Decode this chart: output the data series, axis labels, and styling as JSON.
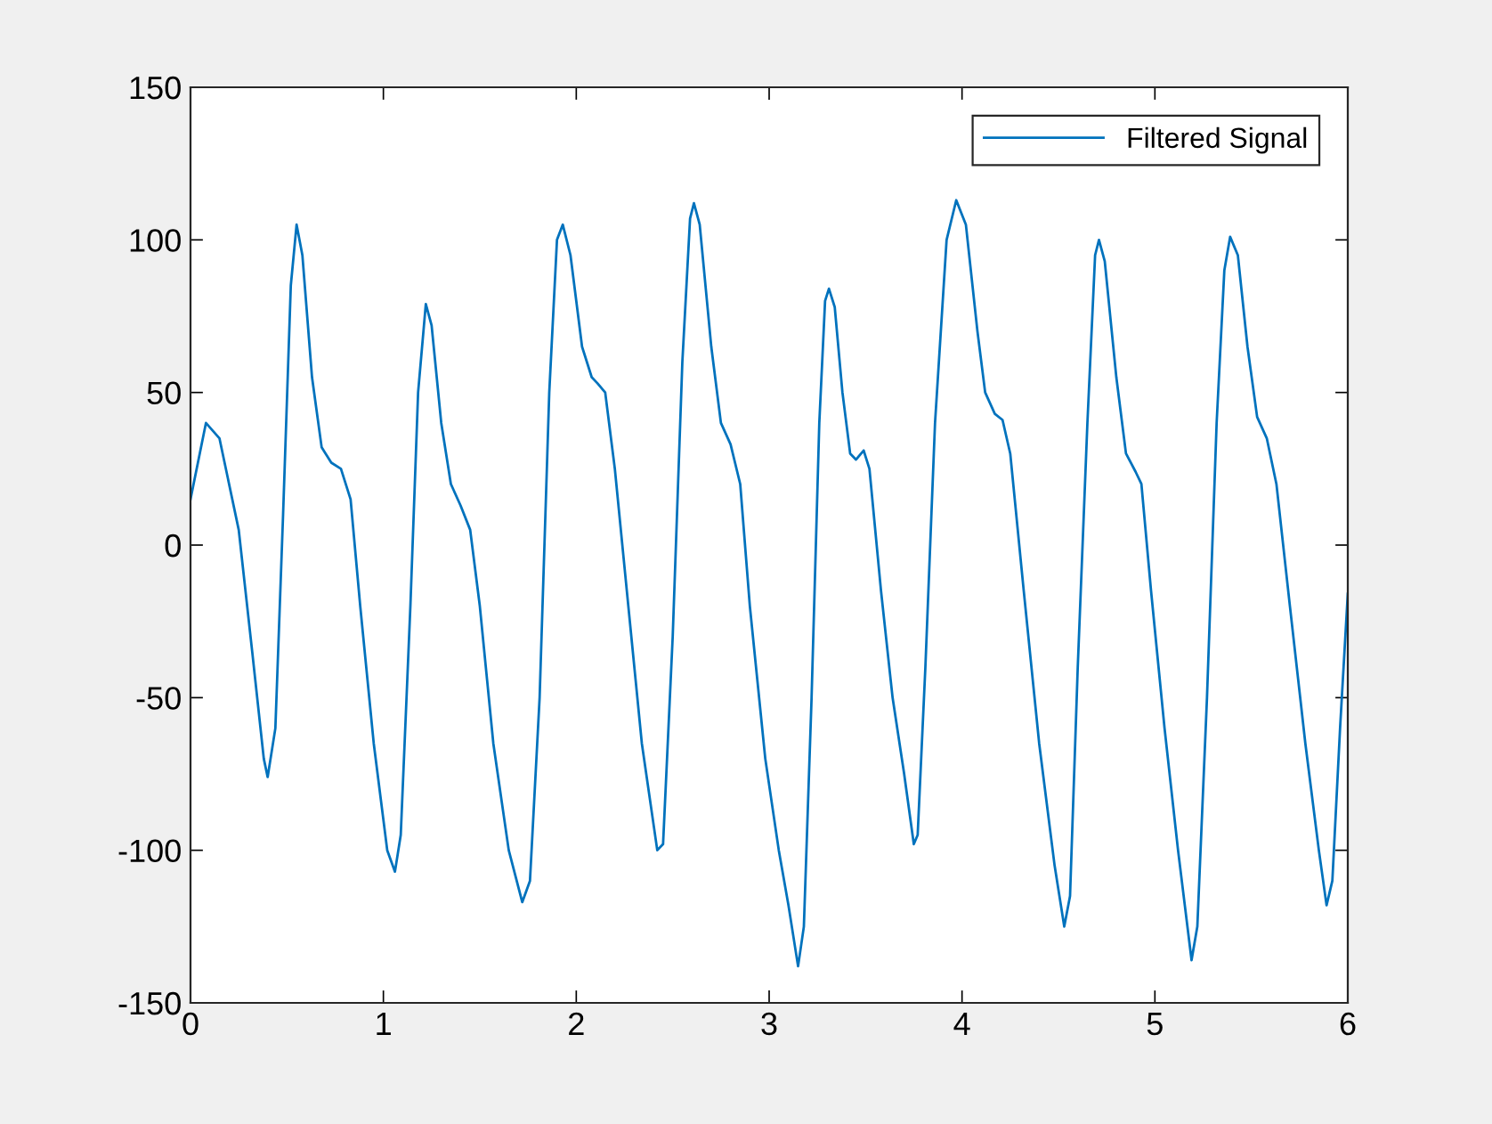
{
  "chart_data": {
    "type": "line",
    "xlim": [
      0,
      6
    ],
    "ylim": [
      -150,
      150
    ],
    "xticks": [
      0,
      1,
      2,
      3,
      4,
      5,
      6
    ],
    "yticks": [
      -150,
      -100,
      -50,
      0,
      50,
      100,
      150
    ],
    "grid": false,
    "legend": "top right",
    "line_style": "solid",
    "marker": "none",
    "series": [
      {
        "name": "Filtered Signal",
        "color": "#0072bd",
        "x": [
          0,
          0.08,
          0.15,
          0.25,
          0.32,
          0.38,
          0.4,
          0.44,
          0.48,
          0.52,
          0.55,
          0.58,
          0.63,
          0.68,
          0.73,
          0.78,
          0.83,
          0.88,
          0.95,
          1.02,
          1.06,
          1.09,
          1.14,
          1.18,
          1.22,
          1.25,
          1.3,
          1.35,
          1.4,
          1.45,
          1.5,
          1.57,
          1.65,
          1.72,
          1.76,
          1.81,
          1.86,
          1.9,
          1.93,
          1.97,
          2.03,
          2.08,
          2.11,
          2.15,
          2.2,
          2.27,
          2.34,
          2.42,
          2.45,
          2.5,
          2.55,
          2.59,
          2.61,
          2.64,
          2.7,
          2.75,
          2.8,
          2.85,
          2.9,
          2.98,
          3.05,
          3.1,
          3.15,
          3.18,
          3.22,
          3.26,
          3.29,
          3.31,
          3.34,
          3.38,
          3.42,
          3.45,
          3.49,
          3.52,
          3.58,
          3.64,
          3.7,
          3.75,
          3.77,
          3.81,
          3.86,
          3.92,
          3.97,
          4.02,
          4.08,
          4.12,
          4.17,
          4.21,
          4.25,
          4.32,
          4.4,
          4.48,
          4.53,
          4.56,
          4.6,
          4.65,
          4.69,
          4.71,
          4.74,
          4.8,
          4.85,
          4.9,
          4.93,
          4.98,
          5.05,
          5.12,
          5.19,
          5.22,
          5.27,
          5.32,
          5.36,
          5.39,
          5.43,
          5.48,
          5.53,
          5.58,
          5.63,
          5.7,
          5.78,
          5.85,
          5.89,
          5.92,
          5.96,
          6.0
        ],
        "values": [
          15,
          40,
          35,
          5,
          -35,
          -70,
          -76,
          -60,
          10,
          85,
          105,
          95,
          55,
          32,
          27,
          25,
          15,
          -20,
          -65,
          -100,
          -107,
          -95,
          -20,
          50,
          79,
          72,
          40,
          20,
          13,
          5,
          -20,
          -65,
          -100,
          -117,
          -110,
          -50,
          50,
          100,
          105,
          95,
          65,
          55,
          53,
          50,
          25,
          -20,
          -65,
          -100,
          -98,
          -30,
          60,
          107,
          112,
          105,
          65,
          40,
          33,
          20,
          -20,
          -70,
          -100,
          -118,
          -138,
          -125,
          -50,
          40,
          80,
          84,
          78,
          50,
          30,
          28,
          31,
          25,
          -15,
          -50,
          -75,
          -98,
          -95,
          -40,
          40,
          100,
          113,
          105,
          70,
          50,
          43,
          41,
          30,
          -15,
          -65,
          -105,
          -125,
          -115,
          -40,
          40,
          95,
          100,
          93,
          55,
          30,
          24,
          20,
          -15,
          -60,
          -100,
          -136,
          -125,
          -50,
          40,
          90,
          101,
          95,
          65,
          42,
          35,
          20,
          -20,
          -65,
          -100,
          -118,
          -110,
          -60,
          -16
        ]
      }
    ]
  }
}
